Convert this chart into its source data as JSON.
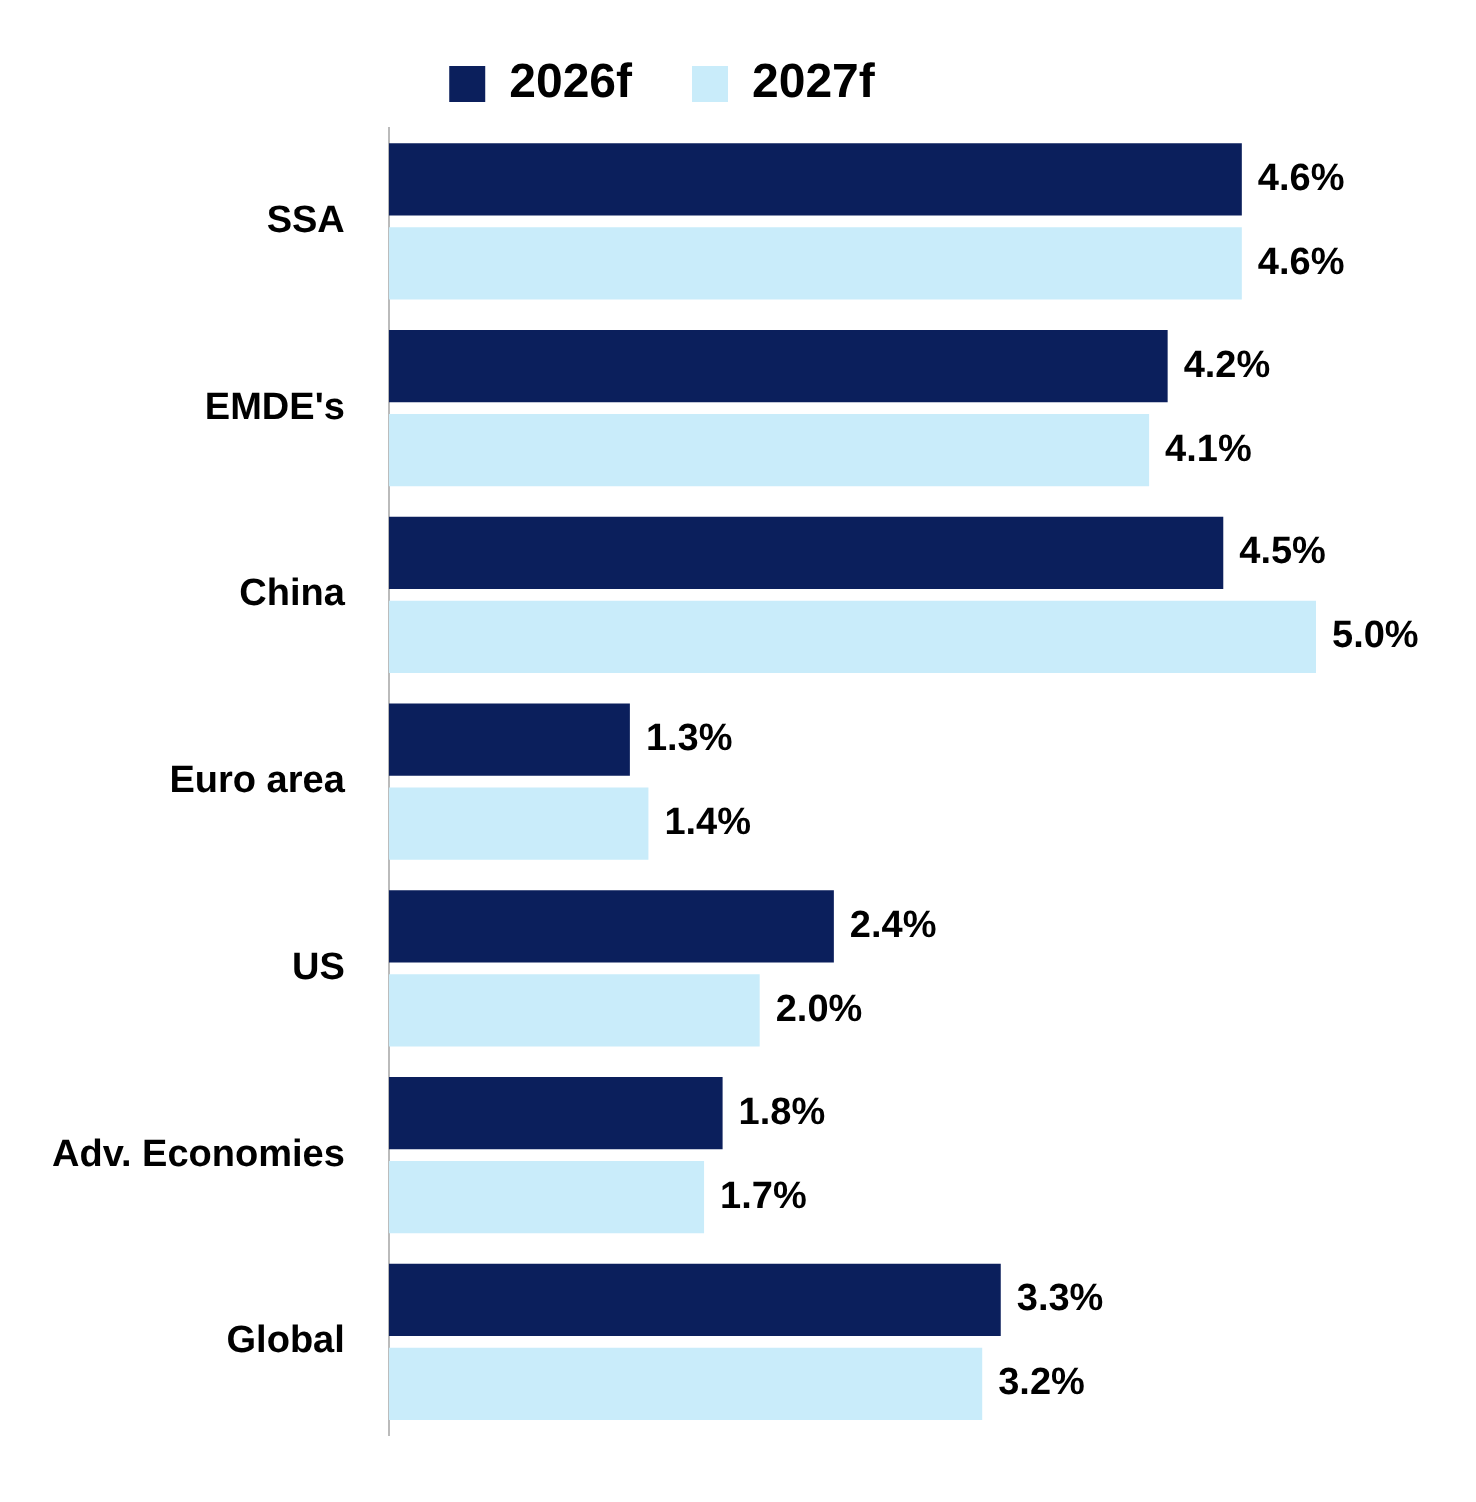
{
  "chart_data": {
    "type": "bar",
    "orientation": "horizontal",
    "categories": [
      "SSA",
      "EMDE's",
      "China",
      "Euro area",
      "US",
      "Adv. Economies",
      "Global"
    ],
    "series": [
      {
        "name": "2026f",
        "color": "#0b1f5c",
        "values": [
          4.6,
          4.2,
          4.5,
          1.3,
          2.4,
          1.8,
          3.3
        ],
        "value_labels": [
          "4.6%",
          "4.2%",
          "4.5%",
          "1.3%",
          "2.4%",
          "1.8%",
          "3.3%"
        ]
      },
      {
        "name": "2027f",
        "color": "#c9ecfa",
        "values": [
          4.6,
          4.1,
          5.0,
          1.4,
          2.0,
          1.7,
          3.2
        ],
        "value_labels": [
          "4.6%",
          "4.1%",
          "5.0%",
          "1.4%",
          "2.0%",
          "1.7%",
          "3.2%"
        ]
      }
    ],
    "grid": false,
    "legend": "top",
    "tick_labels": "y"
  }
}
